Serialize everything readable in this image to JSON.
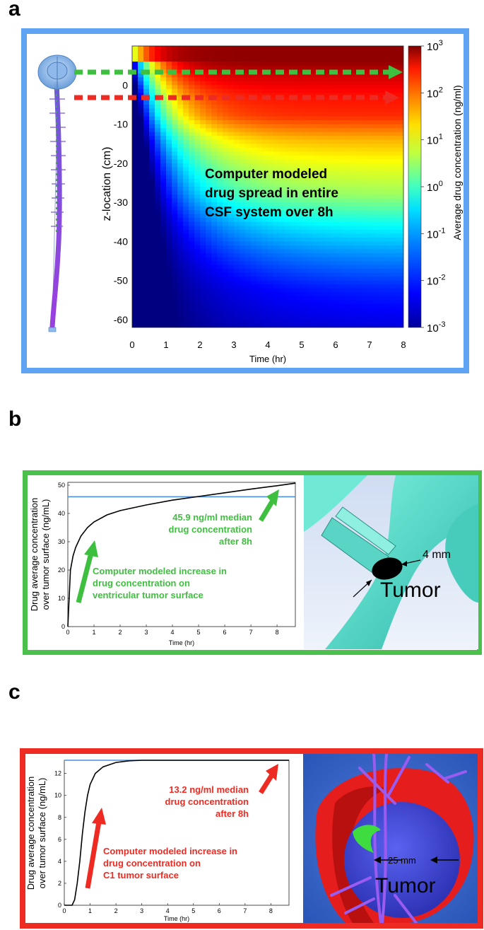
{
  "panels": {
    "a": {
      "letter": "a",
      "frame_color": "#5ea4f2"
    },
    "b": {
      "letter": "b",
      "frame_color": "#4cc04c"
    },
    "c": {
      "letter": "c",
      "frame_color": "#ee2b22"
    }
  },
  "panel_a": {
    "annotation": [
      "Computer modeled",
      "drug spread in entire",
      "CSF system over 8h"
    ],
    "colorbar_label": "Average drug concentration (ng/ml)",
    "arrow_colors": {
      "green": "#3fbf3f",
      "red": "#ee2b22"
    }
  },
  "panel_b": {
    "median_label": [
      "45.9 ng/ml median",
      "drug concentration",
      "after 8h"
    ],
    "increase_label": [
      "Computer modeled increase in",
      "drug concentration on",
      "ventricular tumor surface"
    ],
    "text_color": "#3fbf3f",
    "tumor_label": "Tumor",
    "size_label": "4 mm"
  },
  "panel_c": {
    "median_label": [
      "13.2 ng/ml median",
      "drug concentration",
      "after 8h"
    ],
    "increase_label": [
      "Computer modeled increase in",
      "drug concentration on",
      "C1 tumor surface"
    ],
    "text_color": "#ee2b22",
    "tumor_label": "Tumor",
    "size_label": "25 mm"
  },
  "chart_data": [
    {
      "type": "heatmap",
      "xlabel": "Time (hr)",
      "ylabel": "z-location (cm)",
      "x_ticks": [
        "0",
        "1",
        "2",
        "3",
        "4",
        "5",
        "6",
        "7",
        "8"
      ],
      "y_ticks": [
        "0",
        "-10",
        "-20",
        "-30",
        "-40",
        "-50",
        "-60"
      ],
      "xlim": [
        0,
        8
      ],
      "ylim": [
        -62,
        10
      ],
      "colorbar": {
        "scale": "log",
        "range": [
          0.001,
          1000
        ],
        "tick_bases": [
          "10",
          "10",
          "10",
          "10",
          "10",
          "10",
          "10"
        ],
        "tick_exponents": [
          "3",
          "2",
          "1",
          "0",
          "-1",
          "-2",
          "-3"
        ]
      },
      "depth_levels": [
        {
          "z": 6,
          "log10_conc": 2.9
        },
        {
          "z": 2,
          "log10_conc": 2.5
        },
        {
          "z": -2,
          "log10_conc": 2.2
        },
        {
          "z": -8,
          "log10_conc": 2.0
        },
        {
          "z": -14,
          "log10_conc": 1.2
        },
        {
          "z": -20,
          "log10_conc": 0.7
        },
        {
          "z": -28,
          "log10_conc": 0.2
        },
        {
          "z": -36,
          "log10_conc": -0.7
        },
        {
          "z": -44,
          "log10_conc": -1.4
        },
        {
          "z": -52,
          "log10_conc": -2.0
        },
        {
          "z": -62,
          "log10_conc": -2.4
        }
      ]
    },
    {
      "type": "line",
      "xlabel": "Time (hr)",
      "ylabel": [
        "Drug average concentration",
        "over tumor surface (ng/mL)"
      ],
      "xlim": [
        0,
        8.7
      ],
      "ylim": [
        0,
        51
      ],
      "x_ticks": [
        "0",
        "1",
        "2",
        "3",
        "4",
        "5",
        "6",
        "7",
        "8"
      ],
      "y_ticks": [
        "0",
        "10",
        "20",
        "30",
        "40",
        "50"
      ],
      "median": 45.9,
      "x": [
        0,
        0.05,
        0.1,
        0.2,
        0.3,
        0.5,
        0.75,
        1,
        1.5,
        2,
        3,
        4,
        5,
        6,
        7,
        8,
        8.7
      ],
      "y": [
        0,
        10,
        20,
        25,
        28,
        32,
        35,
        37,
        39.5,
        41,
        43,
        44.7,
        46,
        47.3,
        48.6,
        49.8,
        50.7
      ]
    },
    {
      "type": "line",
      "xlabel": "Time (hr)",
      "ylabel": [
        "Drug average concentration",
        "over tumor surface (ng/mL)"
      ],
      "xlim": [
        0,
        8.7
      ],
      "ylim": [
        0,
        13.2
      ],
      "x_ticks": [
        "0",
        "1",
        "2",
        "3",
        "4",
        "5",
        "6",
        "7",
        "8"
      ],
      "y_ticks": [
        "0",
        "2",
        "4",
        "6",
        "8",
        "10",
        "12"
      ],
      "median": 13.2,
      "x": [
        0,
        0.3,
        0.4,
        0.5,
        0.6,
        0.7,
        0.8,
        0.9,
        1.0,
        1.2,
        1.5,
        2,
        2.5,
        3,
        4,
        5,
        6,
        7,
        8,
        8.7
      ],
      "y": [
        0,
        0,
        0.5,
        2,
        4,
        6.5,
        8.5,
        10,
        11,
        12,
        12.6,
        13,
        13.15,
        13.2,
        13.2,
        13.2,
        13.2,
        13.2,
        13.2,
        13.2
      ]
    }
  ]
}
